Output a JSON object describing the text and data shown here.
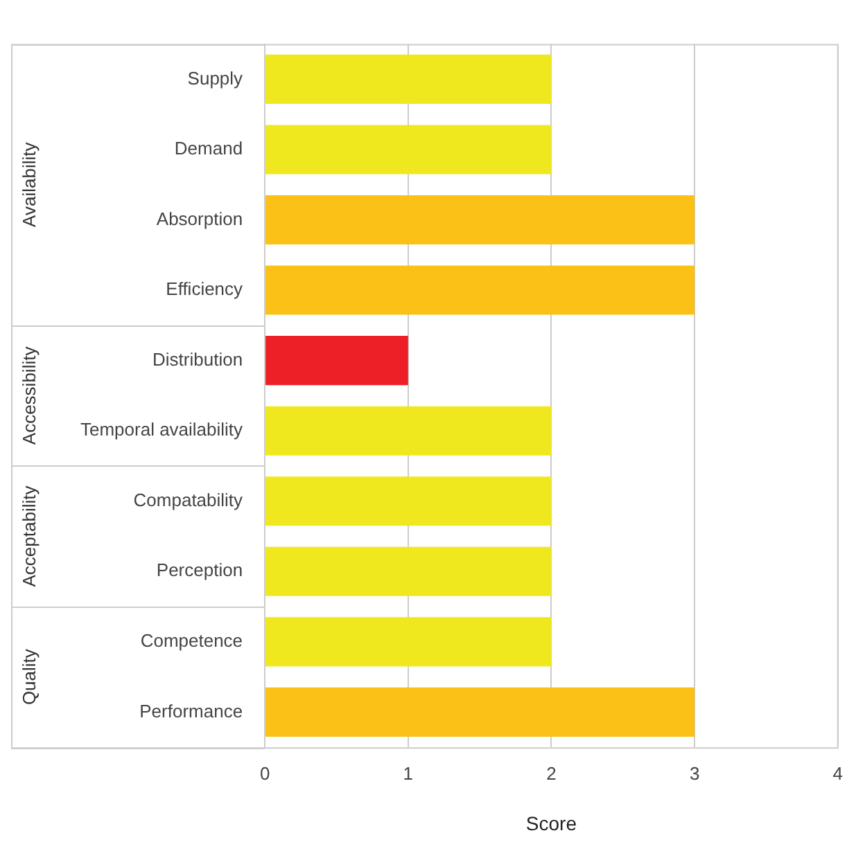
{
  "chart_data": {
    "type": "bar",
    "orientation": "horizontal",
    "xlabel": "Score",
    "categories": [
      "Supply",
      "Demand",
      "Absorption",
      "Efficiency",
      "Distribution",
      "Temporal availability",
      "Compatability",
      "Perception",
      "Competence",
      "Performance"
    ],
    "values": [
      2,
      2,
      3,
      3,
      1,
      2,
      2,
      2,
      2,
      3
    ],
    "colors": [
      "#f0e81e",
      "#f0e81e",
      "#fbc116",
      "#fbc116",
      "#ee2027",
      "#f0e81e",
      "#f0e81e",
      "#f0e81e",
      "#f0e81e",
      "#fbc116"
    ],
    "xlim": [
      0,
      4
    ],
    "xticks": [
      0,
      1,
      2,
      3,
      4
    ],
    "grid": "x",
    "legend": false,
    "annotations": [
      "Availability",
      "Accessibility",
      "Acceptability",
      "Quality"
    ]
  }
}
